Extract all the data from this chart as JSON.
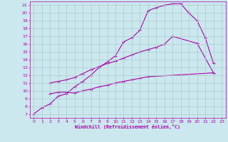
{
  "xlabel": "Windchill (Refroidissement éolien,°C)",
  "bg_color": "#cce8ef",
  "grid_color": "#aacccc",
  "line_color": "#aa00aa",
  "xlim": [
    -0.5,
    23.5
  ],
  "ylim": [
    6.5,
    21.5
  ],
  "xticks": [
    0,
    1,
    2,
    3,
    4,
    5,
    6,
    7,
    8,
    9,
    10,
    11,
    12,
    13,
    14,
    15,
    16,
    17,
    18,
    19,
    20,
    21,
    22,
    23
  ],
  "yticks": [
    7,
    8,
    9,
    10,
    11,
    12,
    13,
    14,
    15,
    16,
    17,
    18,
    19,
    20,
    21
  ],
  "line1_x": [
    0,
    1,
    2,
    3,
    4,
    5,
    6,
    7,
    8,
    9,
    10,
    11,
    12,
    13,
    14,
    15,
    16,
    17,
    18,
    19,
    20,
    21,
    22
  ],
  "line1_y": [
    7.0,
    7.8,
    8.3,
    9.3,
    9.6,
    10.5,
    11.2,
    12.0,
    13.0,
    13.7,
    14.5,
    16.3,
    16.8,
    17.8,
    20.3,
    20.7,
    21.0,
    21.2,
    21.2,
    20.0,
    19.0,
    16.8,
    13.5
  ],
  "line2_x": [
    2,
    3,
    4,
    5,
    6,
    7,
    8,
    9,
    10,
    11,
    12,
    13,
    14,
    15,
    16,
    17,
    20,
    22
  ],
  "line2_y": [
    11.0,
    11.2,
    11.4,
    11.7,
    12.2,
    12.7,
    13.1,
    13.5,
    13.8,
    14.2,
    14.6,
    15.0,
    15.3,
    15.6,
    16.0,
    17.0,
    16.1,
    12.3
  ],
  "line3_x": [
    2,
    3,
    4,
    5,
    6,
    7,
    8,
    9,
    10,
    11,
    12,
    13,
    14,
    22
  ],
  "line3_y": [
    9.6,
    9.8,
    9.8,
    9.7,
    10.0,
    10.2,
    10.5,
    10.7,
    11.0,
    11.2,
    11.4,
    11.6,
    11.8,
    12.3
  ]
}
